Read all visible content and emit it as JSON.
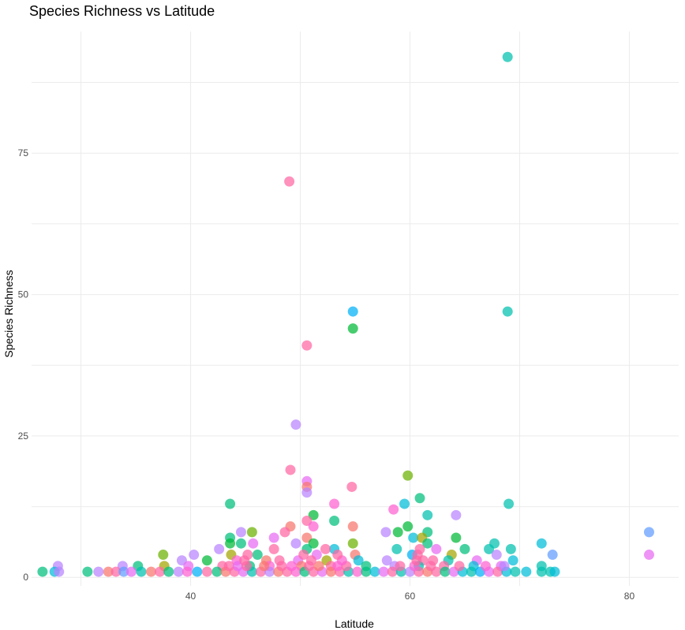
{
  "chart_data": {
    "type": "scatter",
    "title": "Species Richness vs Latitude",
    "xlabel": "Latitude",
    "ylabel": "Species Richness",
    "xlim": [
      25.5,
      84.5
    ],
    "ylim": [
      -1.5,
      96.5
    ],
    "x_ticks": [
      40,
      60,
      80
    ],
    "y_ticks": [
      0,
      25,
      50,
      75
    ],
    "grid": true,
    "legend": "none",
    "palette": [
      "#F8766D",
      "#E58700",
      "#C99800",
      "#A3A500",
      "#6BB100",
      "#00BA38",
      "#00BF7D",
      "#00C0AF",
      "#00BCD8",
      "#00B0F6",
      "#619CFF",
      "#B983FF",
      "#E76BF3",
      "#FD61D1",
      "#FF67A4"
    ],
    "points": [
      {
        "x": 68.9,
        "y": 92,
        "c": 7
      },
      {
        "x": 49,
        "y": 70,
        "c": 14
      },
      {
        "x": 54.8,
        "y": 47,
        "c": 9
      },
      {
        "x": 68.9,
        "y": 47,
        "c": 7
      },
      {
        "x": 54.8,
        "y": 44,
        "c": 5
      },
      {
        "x": 50.6,
        "y": 41,
        "c": 14
      },
      {
        "x": 49.6,
        "y": 27,
        "c": 11
      },
      {
        "x": 49.1,
        "y": 19,
        "c": 14
      },
      {
        "x": 59.8,
        "y": 18,
        "c": 4
      },
      {
        "x": 50.6,
        "y": 17,
        "c": 12
      },
      {
        "x": 50.6,
        "y": 16,
        "c": 0
      },
      {
        "x": 54.7,
        "y": 16,
        "c": 14
      },
      {
        "x": 50.6,
        "y": 15,
        "c": 11
      },
      {
        "x": 60.9,
        "y": 14,
        "c": 6
      },
      {
        "x": 43.6,
        "y": 13,
        "c": 6
      },
      {
        "x": 53.1,
        "y": 13,
        "c": 13
      },
      {
        "x": 59.5,
        "y": 13,
        "c": 8
      },
      {
        "x": 69,
        "y": 13,
        "c": 7
      },
      {
        "x": 58.5,
        "y": 12,
        "c": 13
      },
      {
        "x": 51.2,
        "y": 11,
        "c": 5
      },
      {
        "x": 61.6,
        "y": 11,
        "c": 7
      },
      {
        "x": 64.2,
        "y": 11,
        "c": 11
      },
      {
        "x": 50.6,
        "y": 10,
        "c": 14
      },
      {
        "x": 53.1,
        "y": 10,
        "c": 6
      },
      {
        "x": 49.1,
        "y": 9,
        "c": 0
      },
      {
        "x": 51.2,
        "y": 9,
        "c": 13
      },
      {
        "x": 54.8,
        "y": 9,
        "c": 0
      },
      {
        "x": 59.8,
        "y": 9,
        "c": 5
      },
      {
        "x": 44.6,
        "y": 8,
        "c": 11
      },
      {
        "x": 45.6,
        "y": 8,
        "c": 4
      },
      {
        "x": 48.6,
        "y": 8,
        "c": 14
      },
      {
        "x": 57.8,
        "y": 8,
        "c": 11
      },
      {
        "x": 58.9,
        "y": 8,
        "c": 5
      },
      {
        "x": 61.6,
        "y": 8,
        "c": 6
      },
      {
        "x": 81.8,
        "y": 8,
        "c": 10
      },
      {
        "x": 43.6,
        "y": 7,
        "c": 6
      },
      {
        "x": 47.6,
        "y": 7,
        "c": 12
      },
      {
        "x": 50.6,
        "y": 7,
        "c": 0
      },
      {
        "x": 60.3,
        "y": 7,
        "c": 8
      },
      {
        "x": 61.1,
        "y": 7,
        "c": 3
      },
      {
        "x": 64.2,
        "y": 7,
        "c": 5
      },
      {
        "x": 43.6,
        "y": 6,
        "c": 5
      },
      {
        "x": 44.6,
        "y": 6,
        "c": 6
      },
      {
        "x": 45.7,
        "y": 6,
        "c": 12
      },
      {
        "x": 49.6,
        "y": 6,
        "c": 11
      },
      {
        "x": 51.2,
        "y": 6,
        "c": 5
      },
      {
        "x": 54.8,
        "y": 6,
        "c": 4
      },
      {
        "x": 61.6,
        "y": 6,
        "c": 6
      },
      {
        "x": 67.7,
        "y": 6,
        "c": 7
      },
      {
        "x": 72,
        "y": 6,
        "c": 8
      },
      {
        "x": 42.6,
        "y": 5,
        "c": 11
      },
      {
        "x": 47.6,
        "y": 5,
        "c": 14
      },
      {
        "x": 50.6,
        "y": 5,
        "c": 6
      },
      {
        "x": 53.1,
        "y": 5,
        "c": 8
      },
      {
        "x": 58.8,
        "y": 5,
        "c": 7
      },
      {
        "x": 62.4,
        "y": 5,
        "c": 12
      },
      {
        "x": 65,
        "y": 5,
        "c": 6
      },
      {
        "x": 67.2,
        "y": 5,
        "c": 7
      },
      {
        "x": 69.2,
        "y": 5,
        "c": 7
      },
      {
        "x": 37.5,
        "y": 4,
        "c": 4
      },
      {
        "x": 40.3,
        "y": 4,
        "c": 11
      },
      {
        "x": 43.7,
        "y": 4,
        "c": 3
      },
      {
        "x": 46.1,
        "y": 4,
        "c": 6
      },
      {
        "x": 51.5,
        "y": 4,
        "c": 12
      },
      {
        "x": 55,
        "y": 4,
        "c": 0
      },
      {
        "x": 60.2,
        "y": 4,
        "c": 9
      },
      {
        "x": 63.8,
        "y": 4,
        "c": 3
      },
      {
        "x": 67.9,
        "y": 4,
        "c": 11
      },
      {
        "x": 73,
        "y": 4,
        "c": 10
      },
      {
        "x": 81.8,
        "y": 4,
        "c": 12
      },
      {
        "x": 39.2,
        "y": 3,
        "c": 11
      },
      {
        "x": 41.5,
        "y": 3,
        "c": 5
      },
      {
        "x": 44.2,
        "y": 3,
        "c": 13
      },
      {
        "x": 46.9,
        "y": 3,
        "c": 0
      },
      {
        "x": 49.8,
        "y": 3,
        "c": 12
      },
      {
        "x": 52.4,
        "y": 3,
        "c": 3
      },
      {
        "x": 55.3,
        "y": 3,
        "c": 8
      },
      {
        "x": 57.9,
        "y": 3,
        "c": 11
      },
      {
        "x": 61.2,
        "y": 3,
        "c": 14
      },
      {
        "x": 63.5,
        "y": 3,
        "c": 7
      },
      {
        "x": 66.1,
        "y": 3,
        "c": 12
      },
      {
        "x": 69.4,
        "y": 3,
        "c": 8
      },
      {
        "x": 27.9,
        "y": 2,
        "c": 11
      },
      {
        "x": 33.8,
        "y": 2,
        "c": 11
      },
      {
        "x": 35.2,
        "y": 2,
        "c": 6
      },
      {
        "x": 37.6,
        "y": 2,
        "c": 3
      },
      {
        "x": 39.8,
        "y": 2,
        "c": 12
      },
      {
        "x": 42.9,
        "y": 2,
        "c": 14
      },
      {
        "x": 45.4,
        "y": 2,
        "c": 6
      },
      {
        "x": 47.2,
        "y": 2,
        "c": 13
      },
      {
        "x": 50.1,
        "y": 2,
        "c": 0
      },
      {
        "x": 52.8,
        "y": 2,
        "c": 14
      },
      {
        "x": 56,
        "y": 2,
        "c": 6
      },
      {
        "x": 58.6,
        "y": 2,
        "c": 11
      },
      {
        "x": 60.8,
        "y": 2,
        "c": 7
      },
      {
        "x": 63.1,
        "y": 2,
        "c": 14
      },
      {
        "x": 65.8,
        "y": 2,
        "c": 8
      },
      {
        "x": 68.3,
        "y": 2,
        "c": 12
      },
      {
        "x": 72,
        "y": 2,
        "c": 7
      },
      {
        "x": 26.5,
        "y": 1,
        "c": 6
      },
      {
        "x": 27.6,
        "y": 1,
        "c": 8
      },
      {
        "x": 28,
        "y": 1,
        "c": 11
      },
      {
        "x": 30.6,
        "y": 1,
        "c": 6
      },
      {
        "x": 31.6,
        "y": 1,
        "c": 11
      },
      {
        "x": 32.5,
        "y": 1,
        "c": 0
      },
      {
        "x": 33.2,
        "y": 1,
        "c": 14
      },
      {
        "x": 33.9,
        "y": 1,
        "c": 10
      },
      {
        "x": 34.6,
        "y": 1,
        "c": 12
      },
      {
        "x": 35.5,
        "y": 1,
        "c": 7
      },
      {
        "x": 36.4,
        "y": 1,
        "c": 0
      },
      {
        "x": 37.2,
        "y": 1,
        "c": 14
      },
      {
        "x": 38,
        "y": 1,
        "c": 6
      },
      {
        "x": 38.9,
        "y": 1,
        "c": 11
      },
      {
        "x": 39.7,
        "y": 1,
        "c": 13
      },
      {
        "x": 40.6,
        "y": 1,
        "c": 9
      },
      {
        "x": 41.5,
        "y": 1,
        "c": 14
      },
      {
        "x": 42.4,
        "y": 1,
        "c": 6
      },
      {
        "x": 43.2,
        "y": 1,
        "c": 0
      },
      {
        "x": 44,
        "y": 1,
        "c": 14
      },
      {
        "x": 44.8,
        "y": 1,
        "c": 12
      },
      {
        "x": 45.6,
        "y": 1,
        "c": 7
      },
      {
        "x": 46.4,
        "y": 1,
        "c": 14
      },
      {
        "x": 47.2,
        "y": 1,
        "c": 11
      },
      {
        "x": 48,
        "y": 1,
        "c": 0
      },
      {
        "x": 48.8,
        "y": 1,
        "c": 14
      },
      {
        "x": 49.6,
        "y": 1,
        "c": 13
      },
      {
        "x": 50.4,
        "y": 1,
        "c": 6
      },
      {
        "x": 51.2,
        "y": 1,
        "c": 14
      },
      {
        "x": 52,
        "y": 1,
        "c": 12
      },
      {
        "x": 52.8,
        "y": 1,
        "c": 0
      },
      {
        "x": 53.6,
        "y": 1,
        "c": 14
      },
      {
        "x": 54.4,
        "y": 1,
        "c": 7
      },
      {
        "x": 55.2,
        "y": 1,
        "c": 13
      },
      {
        "x": 56,
        "y": 1,
        "c": 6
      },
      {
        "x": 56.8,
        "y": 1,
        "c": 8
      },
      {
        "x": 57.6,
        "y": 1,
        "c": 12
      },
      {
        "x": 58.4,
        "y": 1,
        "c": 14
      },
      {
        "x": 59.2,
        "y": 1,
        "c": 7
      },
      {
        "x": 60,
        "y": 1,
        "c": 11
      },
      {
        "x": 60.8,
        "y": 1,
        "c": 14
      },
      {
        "x": 61.6,
        "y": 1,
        "c": 0
      },
      {
        "x": 62.4,
        "y": 1,
        "c": 14
      },
      {
        "x": 63.2,
        "y": 1,
        "c": 6
      },
      {
        "x": 64,
        "y": 1,
        "c": 12
      },
      {
        "x": 64.8,
        "y": 1,
        "c": 8
      },
      {
        "x": 65.6,
        "y": 1,
        "c": 7
      },
      {
        "x": 66.4,
        "y": 1,
        "c": 9
      },
      {
        "x": 67.2,
        "y": 1,
        "c": 12
      },
      {
        "x": 68,
        "y": 1,
        "c": 14
      },
      {
        "x": 68.8,
        "y": 1,
        "c": 8
      },
      {
        "x": 69.6,
        "y": 1,
        "c": 7
      },
      {
        "x": 70.6,
        "y": 1,
        "c": 8
      },
      {
        "x": 72,
        "y": 1,
        "c": 7
      },
      {
        "x": 72.8,
        "y": 1,
        "c": 7
      },
      {
        "x": 73.2,
        "y": 1,
        "c": 8
      },
      {
        "x": 43.5,
        "y": 2,
        "c": 14
      },
      {
        "x": 44.3,
        "y": 2,
        "c": 12
      },
      {
        "x": 45.1,
        "y": 2,
        "c": 14
      },
      {
        "x": 46.7,
        "y": 2,
        "c": 0
      },
      {
        "x": 48.3,
        "y": 2,
        "c": 14
      },
      {
        "x": 49.2,
        "y": 2,
        "c": 13
      },
      {
        "x": 50.8,
        "y": 2,
        "c": 14
      },
      {
        "x": 51.7,
        "y": 2,
        "c": 0
      },
      {
        "x": 53.4,
        "y": 2,
        "c": 13
      },
      {
        "x": 54.2,
        "y": 2,
        "c": 14
      },
      {
        "x": 59.1,
        "y": 2,
        "c": 14
      },
      {
        "x": 60.4,
        "y": 2,
        "c": 13
      },
      {
        "x": 61.9,
        "y": 2,
        "c": 14
      },
      {
        "x": 64.5,
        "y": 2,
        "c": 14
      },
      {
        "x": 66.9,
        "y": 2,
        "c": 13
      },
      {
        "x": 68.6,
        "y": 2,
        "c": 11
      },
      {
        "x": 44.9,
        "y": 3,
        "c": 14
      },
      {
        "x": 48.1,
        "y": 3,
        "c": 14
      },
      {
        "x": 51.0,
        "y": 3,
        "c": 14
      },
      {
        "x": 53.8,
        "y": 3,
        "c": 13
      },
      {
        "x": 60.6,
        "y": 3,
        "c": 14
      },
      {
        "x": 62.1,
        "y": 3,
        "c": 14
      },
      {
        "x": 45.2,
        "y": 4,
        "c": 14
      },
      {
        "x": 50.3,
        "y": 4,
        "c": 14
      },
      {
        "x": 53.4,
        "y": 4,
        "c": 14
      },
      {
        "x": 60.7,
        "y": 4,
        "c": 14
      },
      {
        "x": 60.9,
        "y": 5,
        "c": 14
      },
      {
        "x": 52.3,
        "y": 5,
        "c": 14
      }
    ]
  }
}
